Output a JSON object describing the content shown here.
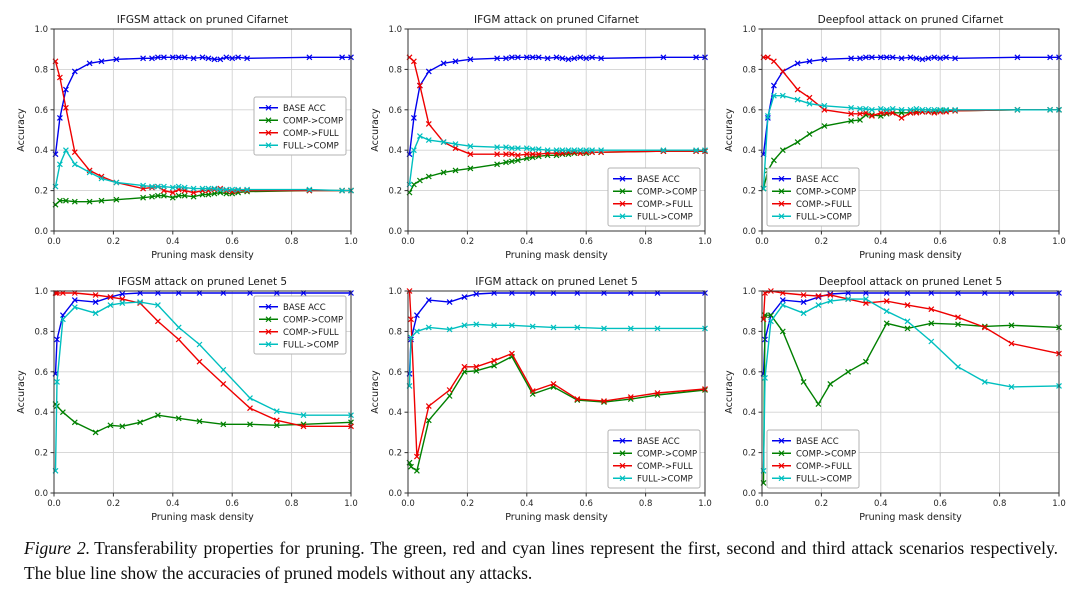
{
  "caption": {
    "label": "Figure 2.",
    "text": "Transferability properties for pruning. The green, red and cyan lines represent the first, second and third attack scenarios respectively. The blue line show the accuracies of pruned models without any attacks."
  },
  "colors": {
    "base": "#0000ee",
    "comp_comp": "#008000",
    "comp_full": "#ee0000",
    "full_comp": "#00bfbf",
    "grid": "#d2d2d2",
    "spine": "#333333",
    "title_text": "#1a1a1a",
    "tick_text": "#262626",
    "legend_border": "#b3b3b3"
  },
  "legend_labels": [
    "BASE ACC",
    "COMP->COMP",
    "COMP->FULL",
    "FULL->COMP"
  ],
  "chart_data": [
    {
      "id": "ifgsm-cifarnet",
      "type": "line",
      "title": "IFGSM attack on pruned Cifarnet",
      "xlabel": "Pruning mask density",
      "ylabel": "Accuracy",
      "xlim": [
        0.0,
        1.0
      ],
      "ylim": [
        0.0,
        1.0
      ],
      "xticks": [
        0.0,
        0.2,
        0.4,
        0.6,
        0.8,
        1.0
      ],
      "yticks": [
        0.0,
        0.2,
        0.4,
        0.6,
        0.8,
        1.0
      ],
      "grid": true,
      "legend_loc": "center right",
      "x": [
        0.005,
        0.02,
        0.04,
        0.07,
        0.12,
        0.16,
        0.21,
        0.3,
        0.33,
        0.35,
        0.37,
        0.4,
        0.42,
        0.44,
        0.47,
        0.5,
        0.52,
        0.54,
        0.56,
        0.58,
        0.6,
        0.62,
        0.65,
        0.86,
        0.97,
        1.0
      ],
      "series": [
        {
          "name": "BASE ACC",
          "color_key": "base",
          "values": [
            0.38,
            0.56,
            0.7,
            0.79,
            0.83,
            0.84,
            0.85,
            0.855,
            0.855,
            0.86,
            0.86,
            0.86,
            0.86,
            0.86,
            0.855,
            0.86,
            0.855,
            0.85,
            0.85,
            0.86,
            0.855,
            0.86,
            0.855,
            0.86,
            0.86,
            0.86
          ]
        },
        {
          "name": "COMP->COMP",
          "color_key": "comp_comp",
          "values": [
            0.13,
            0.15,
            0.15,
            0.145,
            0.145,
            0.15,
            0.155,
            0.165,
            0.17,
            0.175,
            0.175,
            0.165,
            0.175,
            0.175,
            0.17,
            0.18,
            0.18,
            0.185,
            0.19,
            0.185,
            0.185,
            0.19,
            0.195,
            0.2,
            0.2,
            0.2
          ]
        },
        {
          "name": "COMP->FULL",
          "color_key": "comp_full",
          "values": [
            0.84,
            0.76,
            0.61,
            0.39,
            0.3,
            0.27,
            0.24,
            0.21,
            0.215,
            0.22,
            0.2,
            0.19,
            0.205,
            0.2,
            0.19,
            0.2,
            0.2,
            0.205,
            0.21,
            0.2,
            0.195,
            0.2,
            0.2,
            0.2,
            0.2,
            0.2
          ]
        },
        {
          "name": "FULL->COMP",
          "color_key": "full_comp",
          "values": [
            0.22,
            0.33,
            0.4,
            0.33,
            0.29,
            0.26,
            0.24,
            0.225,
            0.22,
            0.22,
            0.22,
            0.215,
            0.22,
            0.215,
            0.21,
            0.21,
            0.21,
            0.21,
            0.205,
            0.205,
            0.205,
            0.205,
            0.205,
            0.205,
            0.2,
            0.2
          ]
        }
      ]
    },
    {
      "id": "ifgm-cifarnet",
      "type": "line",
      "title": "IFGM attack on pruned Cifarnet",
      "xlabel": "Pruning mask density",
      "ylabel": "Accuracy",
      "xlim": [
        0.0,
        1.0
      ],
      "ylim": [
        0.0,
        1.0
      ],
      "xticks": [
        0.0,
        0.2,
        0.4,
        0.6,
        0.8,
        1.0
      ],
      "yticks": [
        0.0,
        0.2,
        0.4,
        0.6,
        0.8,
        1.0
      ],
      "grid": true,
      "legend_loc": "lower right",
      "x": [
        0.005,
        0.02,
        0.04,
        0.07,
        0.12,
        0.16,
        0.21,
        0.3,
        0.33,
        0.35,
        0.37,
        0.4,
        0.42,
        0.44,
        0.47,
        0.5,
        0.52,
        0.54,
        0.56,
        0.58,
        0.6,
        0.62,
        0.65,
        0.86,
        0.97,
        1.0
      ],
      "series": [
        {
          "name": "BASE ACC",
          "color_key": "base",
          "values": [
            0.38,
            0.56,
            0.72,
            0.79,
            0.83,
            0.84,
            0.85,
            0.855,
            0.855,
            0.86,
            0.86,
            0.86,
            0.86,
            0.86,
            0.855,
            0.86,
            0.855,
            0.85,
            0.855,
            0.86,
            0.855,
            0.86,
            0.855,
            0.86,
            0.86,
            0.86
          ]
        },
        {
          "name": "COMP->COMP",
          "color_key": "comp_comp",
          "values": [
            0.19,
            0.23,
            0.25,
            0.27,
            0.29,
            0.3,
            0.31,
            0.33,
            0.34,
            0.345,
            0.35,
            0.36,
            0.365,
            0.37,
            0.375,
            0.375,
            0.38,
            0.38,
            0.385,
            0.385,
            0.385,
            0.39,
            0.39,
            0.395,
            0.395,
            0.395
          ]
        },
        {
          "name": "COMP->FULL",
          "color_key": "comp_full",
          "values": [
            0.86,
            0.84,
            0.72,
            0.53,
            0.44,
            0.41,
            0.38,
            0.38,
            0.38,
            0.38,
            0.375,
            0.38,
            0.38,
            0.38,
            0.385,
            0.385,
            0.385,
            0.39,
            0.39,
            0.385,
            0.39,
            0.39,
            0.39,
            0.395,
            0.395,
            0.395
          ]
        },
        {
          "name": "FULL->COMP",
          "color_key": "full_comp",
          "values": [
            0.23,
            0.4,
            0.47,
            0.45,
            0.44,
            0.43,
            0.42,
            0.415,
            0.415,
            0.41,
            0.41,
            0.41,
            0.405,
            0.405,
            0.4,
            0.4,
            0.4,
            0.4,
            0.4,
            0.4,
            0.4,
            0.4,
            0.4,
            0.4,
            0.4,
            0.4
          ]
        }
      ]
    },
    {
      "id": "deepfool-cifarnet",
      "type": "line",
      "title": "Deepfool attack on pruned Cifarnet",
      "xlabel": "Pruning mask density",
      "ylabel": "Accuracy",
      "xlim": [
        0.0,
        1.0
      ],
      "ylim": [
        0.0,
        1.0
      ],
      "xticks": [
        0.0,
        0.2,
        0.4,
        0.6,
        0.8,
        1.0
      ],
      "yticks": [
        0.0,
        0.2,
        0.4,
        0.6,
        0.8,
        1.0
      ],
      "grid": true,
      "legend_loc": "lower left",
      "x": [
        0.005,
        0.02,
        0.04,
        0.07,
        0.12,
        0.16,
        0.21,
        0.3,
        0.33,
        0.35,
        0.37,
        0.4,
        0.42,
        0.44,
        0.47,
        0.5,
        0.52,
        0.54,
        0.56,
        0.58,
        0.6,
        0.62,
        0.65,
        0.86,
        0.97,
        1.0
      ],
      "series": [
        {
          "name": "BASE ACC",
          "color_key": "base",
          "values": [
            0.38,
            0.56,
            0.72,
            0.79,
            0.83,
            0.84,
            0.85,
            0.855,
            0.855,
            0.86,
            0.86,
            0.86,
            0.86,
            0.86,
            0.855,
            0.86,
            0.855,
            0.85,
            0.855,
            0.86,
            0.855,
            0.86,
            0.855,
            0.86,
            0.86,
            0.86
          ]
        },
        {
          "name": "COMP->COMP",
          "color_key": "comp_comp",
          "values": [
            0.21,
            0.3,
            0.35,
            0.4,
            0.44,
            0.48,
            0.52,
            0.545,
            0.55,
            0.575,
            0.575,
            0.57,
            0.58,
            0.585,
            0.585,
            0.585,
            0.59,
            0.59,
            0.59,
            0.59,
            0.595,
            0.595,
            0.595,
            0.6,
            0.6,
            0.6
          ]
        },
        {
          "name": "COMP->FULL",
          "color_key": "comp_full",
          "values": [
            0.86,
            0.86,
            0.84,
            0.79,
            0.7,
            0.66,
            0.6,
            0.58,
            0.58,
            0.585,
            0.57,
            0.585,
            0.585,
            0.585,
            0.56,
            0.585,
            0.585,
            0.59,
            0.59,
            0.585,
            0.59,
            0.59,
            0.595,
            0.6,
            0.6,
            0.6
          ]
        },
        {
          "name": "FULL->COMP",
          "color_key": "full_comp",
          "values": [
            0.21,
            0.57,
            0.67,
            0.67,
            0.65,
            0.63,
            0.62,
            0.61,
            0.605,
            0.605,
            0.6,
            0.605,
            0.6,
            0.605,
            0.6,
            0.6,
            0.605,
            0.6,
            0.6,
            0.6,
            0.6,
            0.6,
            0.6,
            0.6,
            0.6,
            0.6
          ]
        }
      ]
    },
    {
      "id": "ifgsm-lenet5",
      "type": "line",
      "title": "IFGSM attack on pruned Lenet 5",
      "xlabel": "Pruning mask density",
      "ylabel": "Accuracy",
      "xlim": [
        0.0,
        1.0
      ],
      "ylim": [
        0.0,
        1.0
      ],
      "xticks": [
        0.0,
        0.2,
        0.4,
        0.6,
        0.8,
        1.0
      ],
      "yticks": [
        0.0,
        0.2,
        0.4,
        0.6,
        0.8,
        1.0
      ],
      "grid": true,
      "legend_loc": "upper right",
      "x": [
        0.005,
        0.01,
        0.03,
        0.07,
        0.14,
        0.19,
        0.23,
        0.29,
        0.35,
        0.42,
        0.49,
        0.57,
        0.66,
        0.75,
        0.84,
        1.0
      ],
      "series": [
        {
          "name": "BASE ACC",
          "color_key": "base",
          "values": [
            0.59,
            0.76,
            0.88,
            0.955,
            0.945,
            0.97,
            0.985,
            0.99,
            0.99,
            0.99,
            0.99,
            0.99,
            0.99,
            0.99,
            0.99,
            0.99
          ]
        },
        {
          "name": "COMP->COMP",
          "color_key": "comp_comp",
          "values": [
            0.44,
            0.43,
            0.4,
            0.35,
            0.3,
            0.335,
            0.33,
            0.35,
            0.385,
            0.37,
            0.355,
            0.34,
            0.34,
            0.335,
            0.34,
            0.35
          ]
        },
        {
          "name": "COMP->FULL",
          "color_key": "comp_full",
          "values": [
            0.99,
            0.99,
            0.99,
            0.99,
            0.98,
            0.97,
            0.96,
            0.94,
            0.85,
            0.76,
            0.65,
            0.54,
            0.42,
            0.36,
            0.33,
            0.33
          ]
        },
        {
          "name": "FULL->COMP",
          "color_key": "full_comp",
          "values": [
            0.11,
            0.55,
            0.86,
            0.92,
            0.89,
            0.93,
            0.94,
            0.945,
            0.93,
            0.82,
            0.735,
            0.61,
            0.47,
            0.405,
            0.385,
            0.385
          ]
        }
      ]
    },
    {
      "id": "ifgm-lenet5",
      "type": "line",
      "title": "IFGM attack on pruned Lenet 5",
      "xlabel": "Pruning mask density",
      "ylabel": "Accuracy",
      "xlim": [
        0.0,
        1.0
      ],
      "ylim": [
        0.0,
        1.0
      ],
      "xticks": [
        0.0,
        0.2,
        0.4,
        0.6,
        0.8,
        1.0
      ],
      "yticks": [
        0.0,
        0.2,
        0.4,
        0.6,
        0.8,
        1.0
      ],
      "grid": true,
      "legend_loc": "lower right",
      "x": [
        0.005,
        0.01,
        0.03,
        0.07,
        0.14,
        0.19,
        0.23,
        0.29,
        0.35,
        0.42,
        0.49,
        0.57,
        0.66,
        0.75,
        0.84,
        1.0
      ],
      "series": [
        {
          "name": "BASE ACC",
          "color_key": "base",
          "values": [
            0.59,
            0.76,
            0.88,
            0.955,
            0.945,
            0.97,
            0.985,
            0.99,
            0.99,
            0.99,
            0.99,
            0.99,
            0.99,
            0.99,
            0.99,
            0.99
          ]
        },
        {
          "name": "COMP->COMP",
          "color_key": "comp_comp",
          "values": [
            0.15,
            0.13,
            0.11,
            0.36,
            0.48,
            0.6,
            0.605,
            0.63,
            0.675,
            0.49,
            0.525,
            0.46,
            0.45,
            0.465,
            0.485,
            0.51
          ]
        },
        {
          "name": "COMP->FULL",
          "color_key": "comp_full",
          "values": [
            1.0,
            0.86,
            0.18,
            0.43,
            0.51,
            0.625,
            0.625,
            0.655,
            0.69,
            0.505,
            0.54,
            0.465,
            0.455,
            0.475,
            0.495,
            0.515
          ]
        },
        {
          "name": "FULL->COMP",
          "color_key": "full_comp",
          "values": [
            0.53,
            0.77,
            0.8,
            0.82,
            0.81,
            0.83,
            0.835,
            0.83,
            0.83,
            0.825,
            0.82,
            0.82,
            0.815,
            0.815,
            0.815,
            0.815
          ]
        }
      ]
    },
    {
      "id": "deepfool-lenet5",
      "type": "line",
      "title": "Deepfool attack on pruned Lenet 5",
      "xlabel": "Pruning mask density",
      "ylabel": "Accuracy",
      "xlim": [
        0.0,
        1.0
      ],
      "ylim": [
        0.0,
        1.0
      ],
      "xticks": [
        0.0,
        0.2,
        0.4,
        0.6,
        0.8,
        1.0
      ],
      "yticks": [
        0.0,
        0.2,
        0.4,
        0.6,
        0.8,
        1.0
      ],
      "grid": true,
      "legend_loc": "lower left",
      "x": [
        0.005,
        0.01,
        0.03,
        0.07,
        0.14,
        0.19,
        0.23,
        0.29,
        0.35,
        0.42,
        0.49,
        0.57,
        0.66,
        0.75,
        0.84,
        1.0
      ],
      "series": [
        {
          "name": "BASE ACC",
          "color_key": "base",
          "values": [
            0.59,
            0.76,
            0.88,
            0.955,
            0.945,
            0.97,
            0.985,
            0.99,
            0.99,
            0.99,
            0.99,
            0.99,
            0.99,
            0.99,
            0.99,
            0.99
          ]
        },
        {
          "name": "COMP->COMP",
          "color_key": "comp_comp",
          "values": [
            0.05,
            0.88,
            0.88,
            0.8,
            0.55,
            0.44,
            0.54,
            0.6,
            0.65,
            0.84,
            0.815,
            0.84,
            0.835,
            0.825,
            0.83,
            0.82
          ]
        },
        {
          "name": "COMP->FULL",
          "color_key": "comp_full",
          "values": [
            0.86,
            0.99,
            1.0,
            0.99,
            0.98,
            0.975,
            0.98,
            0.96,
            0.94,
            0.95,
            0.93,
            0.91,
            0.87,
            0.82,
            0.74,
            0.69
          ]
        },
        {
          "name": "FULL->COMP",
          "color_key": "full_comp",
          "values": [
            0.11,
            0.57,
            0.85,
            0.93,
            0.89,
            0.93,
            0.95,
            0.96,
            0.96,
            0.9,
            0.85,
            0.75,
            0.625,
            0.55,
            0.525,
            0.53
          ]
        }
      ]
    }
  ]
}
